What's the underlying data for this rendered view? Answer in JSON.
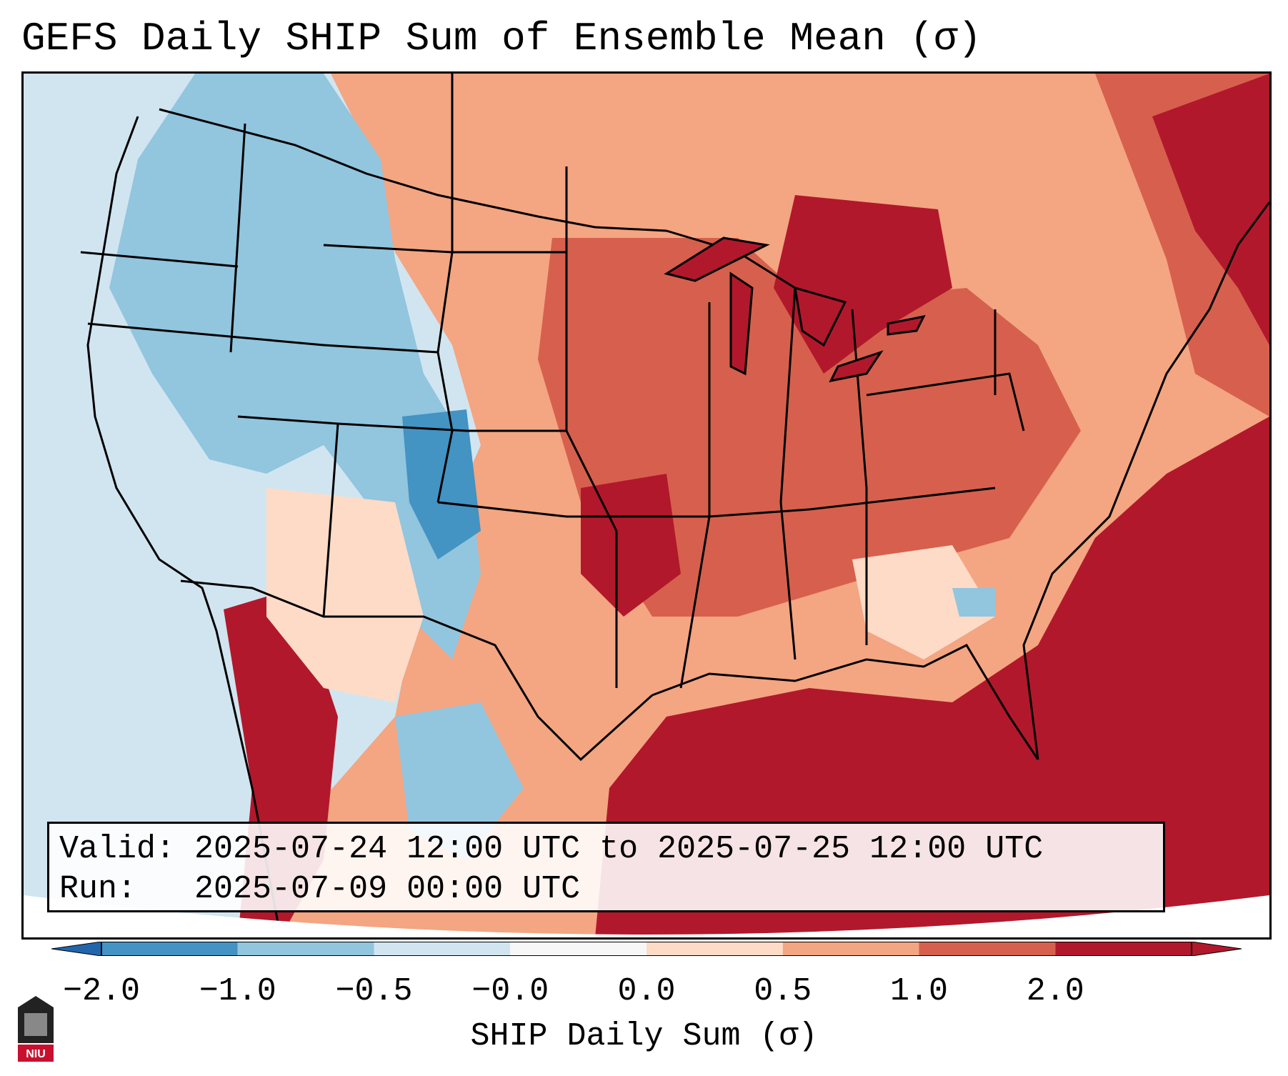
{
  "title": "GEFS Daily SHIP Sum of Ensemble Mean (σ)",
  "info": {
    "valid": "Valid: 2025-07-24 12:00 UTC to 2025-07-25 12:00 UTC",
    "run": "Run:   2025-07-09 00:00 UTC"
  },
  "colorbar": {
    "label": "SHIP Daily Sum (σ)",
    "tick_labels": [
      "−2.0",
      "−1.0",
      "−0.5",
      "−0.0",
      "0.0",
      "0.5",
      "1.0",
      "2.0"
    ],
    "bin_colors": [
      "#4393c3",
      "#92c5de",
      "#d1e5f0",
      "#f7f7f7",
      "#fddbc7",
      "#f4a582",
      "#d6604d",
      "#b2182b"
    ],
    "extend_low_color": "#2166ac",
    "extend_high_color": "#b2182b"
  },
  "logo_text": "NIU"
}
